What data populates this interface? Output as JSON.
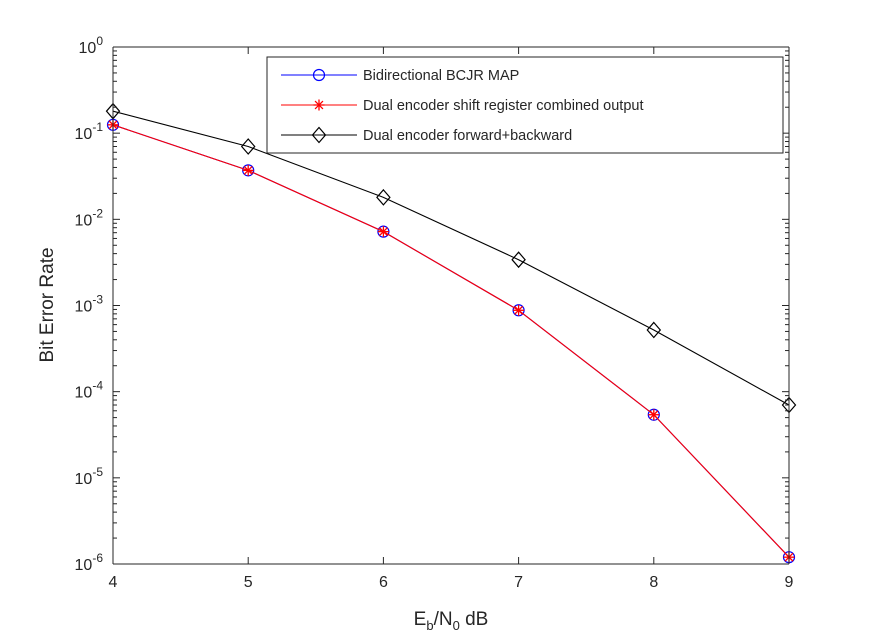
{
  "chart_data": {
    "type": "line",
    "xlabel": "E_b/N_0 dB",
    "xlabel_parts": {
      "E": "E",
      "b": "b",
      "slash_n": "/N",
      "zero": "0",
      "unit": " dB"
    },
    "ylabel": "Bit Error Rate",
    "xlim": [
      4,
      9
    ],
    "ylim": [
      1e-06,
      1
    ],
    "yscale": "log",
    "xticks": [
      4,
      5,
      6,
      7,
      8,
      9
    ],
    "yticks": [
      {
        "value": 1.0,
        "base": "10",
        "exp": "0"
      },
      {
        "value": 0.1,
        "base": "10",
        "exp": "-1"
      },
      {
        "value": 0.01,
        "base": "10",
        "exp": "-2"
      },
      {
        "value": 0.001,
        "base": "10",
        "exp": "-3"
      },
      {
        "value": 0.0001,
        "base": "10",
        "exp": "-4"
      },
      {
        "value": 1e-05,
        "base": "10",
        "exp": "-5"
      },
      {
        "value": 1e-06,
        "base": "10",
        "exp": "-6"
      }
    ],
    "grid": false,
    "legend_position": "top-right",
    "x": [
      4,
      5,
      6,
      7,
      8,
      9
    ],
    "series": [
      {
        "name": "Bidirectional BCJR MAP",
        "color": "#0000ff",
        "marker": "circle",
        "values": [
          0.125,
          0.037,
          0.0072,
          0.00088,
          5.4e-05,
          1.2e-06
        ]
      },
      {
        "name": "Dual encoder shift register combined output",
        "color": "#ff0000",
        "marker": "asterisk",
        "values": [
          0.125,
          0.037,
          0.0072,
          0.00088,
          5.4e-05,
          1.2e-06
        ]
      },
      {
        "name": "Dual encoder forward+backward",
        "color": "#000000",
        "marker": "diamond",
        "values": [
          0.18,
          0.07,
          0.018,
          0.0034,
          0.00052,
          7e-05
        ]
      }
    ]
  }
}
